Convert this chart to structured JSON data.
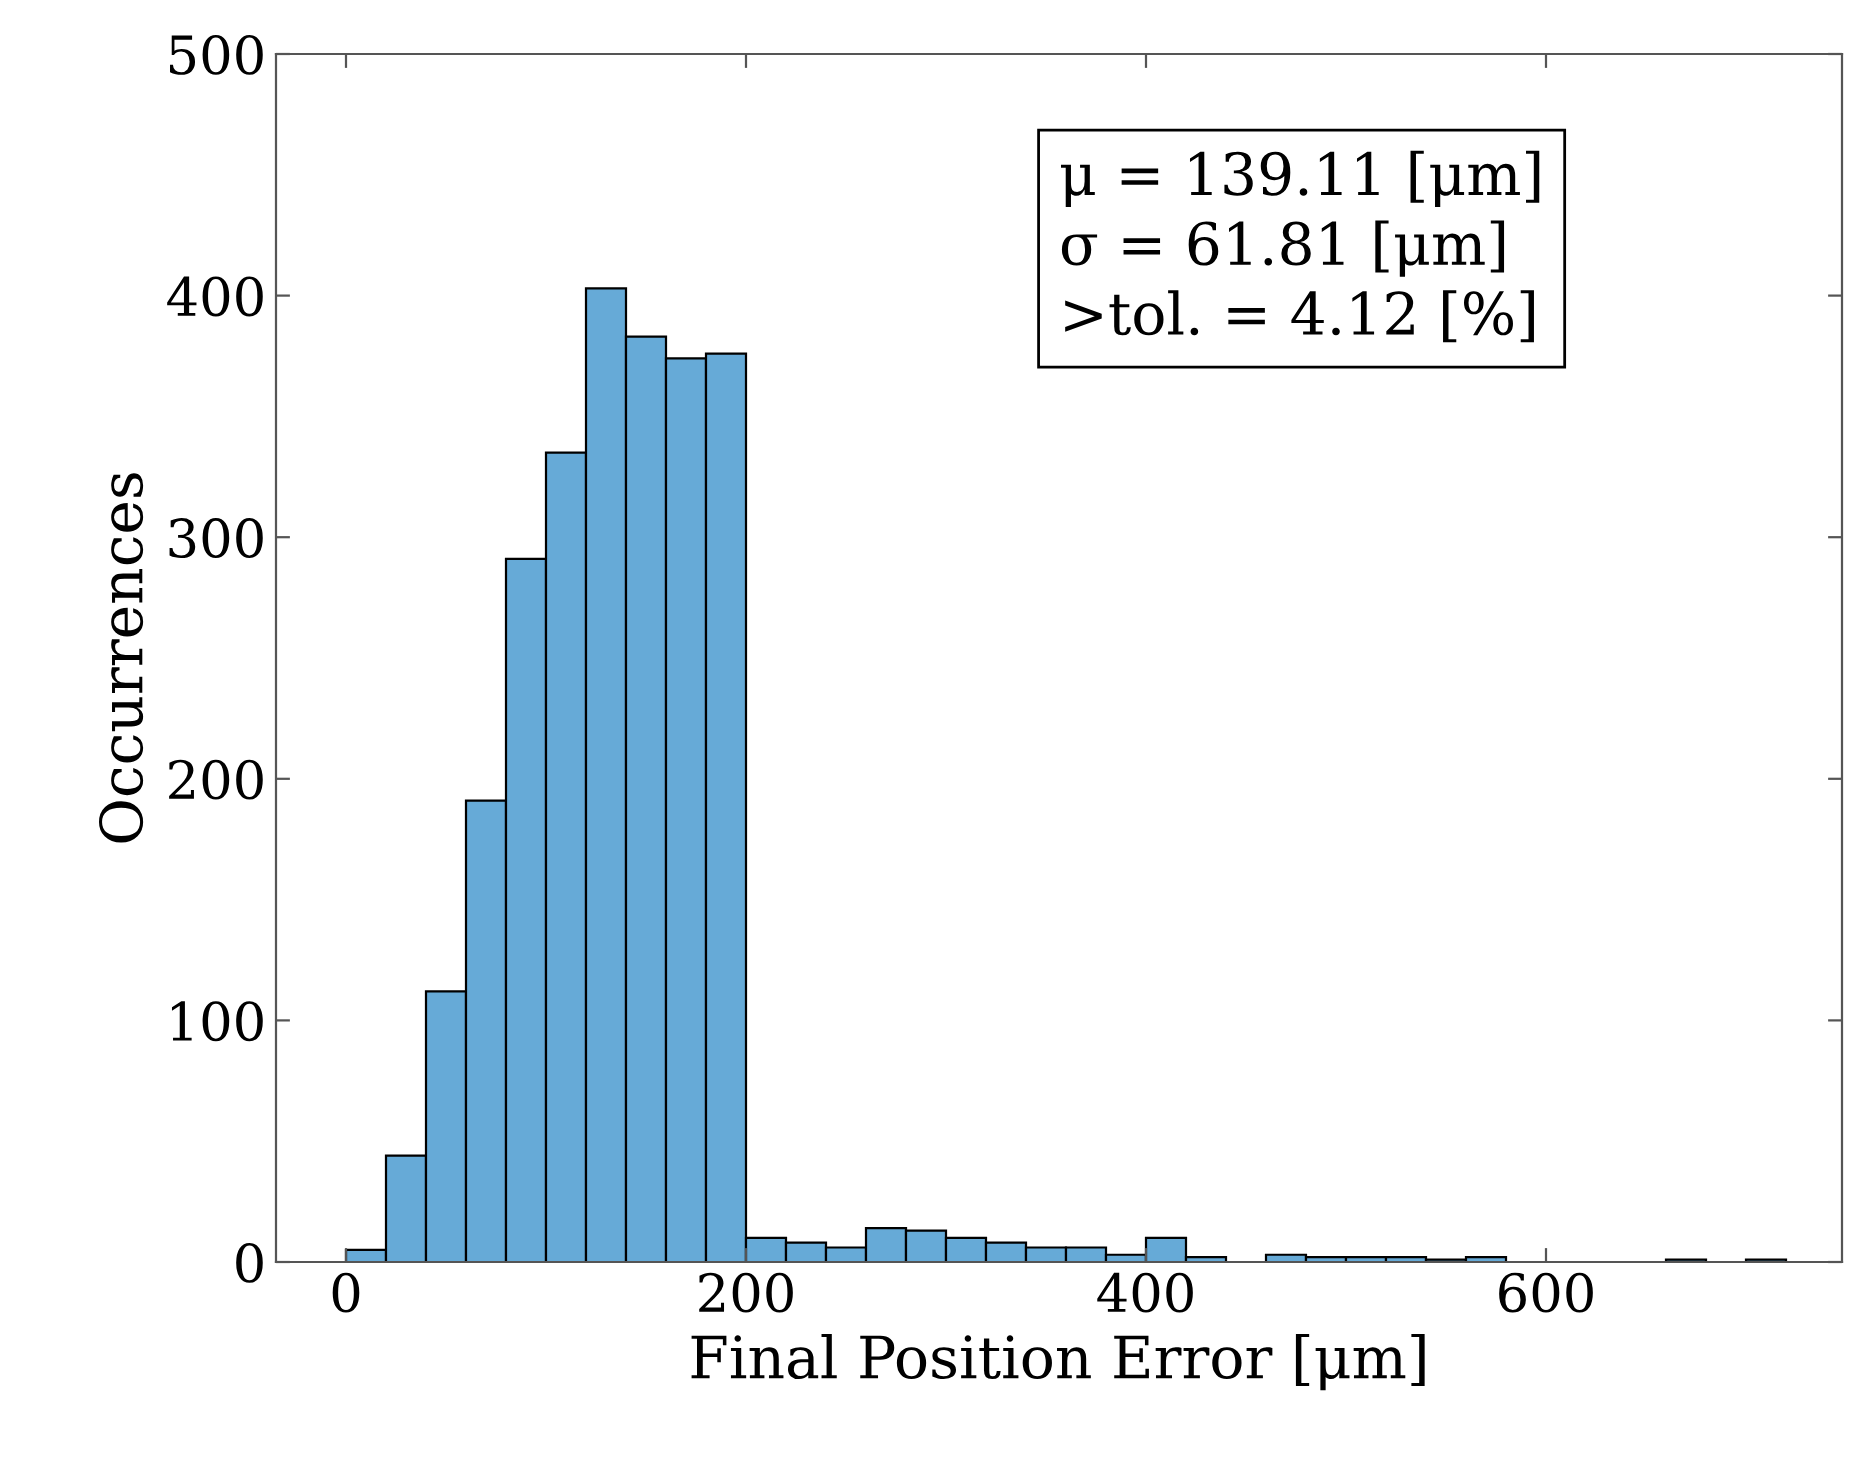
{
  "chart_data": {
    "type": "histogram",
    "xlabel": "Final Position Error [μm]",
    "ylabel": "Occurrences",
    "bins": [
      0,
      20,
      40,
      60,
      80,
      100,
      120,
      140,
      160,
      180,
      200,
      220,
      240,
      260,
      280,
      300,
      320,
      340,
      360,
      380,
      400,
      420,
      440,
      460,
      480,
      500,
      520,
      540,
      560,
      580,
      600,
      620,
      640,
      660,
      680,
      700,
      720
    ],
    "values": [
      5,
      44,
      112,
      191,
      291,
      335,
      403,
      383,
      374,
      376,
      10,
      8,
      6,
      14,
      13,
      10,
      8,
      6,
      6,
      3,
      10,
      2,
      0,
      3,
      2,
      2,
      2,
      1,
      2,
      0,
      0,
      0,
      0,
      1,
      0,
      1
    ],
    "color": "#66aad7",
    "xlim": [
      -35,
      748
    ],
    "ylim": [
      0,
      500
    ],
    "xticks": [
      0,
      200,
      400,
      600
    ],
    "yticks": [
      0,
      100,
      200,
      300,
      400,
      500
    ],
    "grid": false,
    "legend": false,
    "annotations": [
      "μ = 139.11 [μm]",
      "σ = 61.81 [μm]",
      ">tol. = 4.12 [%]"
    ]
  }
}
